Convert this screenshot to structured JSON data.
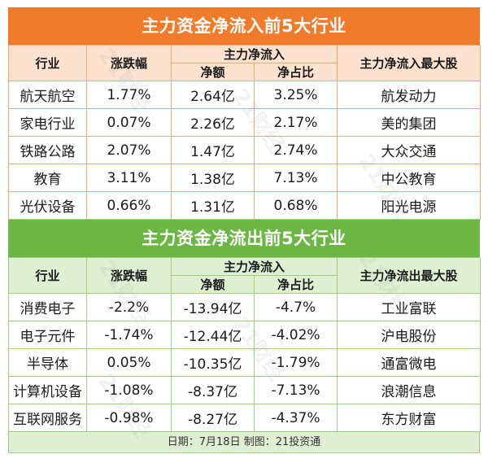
{
  "inflow": {
    "title": "主力资金净流入前5大行业",
    "headers": {
      "industry": "行业",
      "change": "涨跌幅",
      "main_flow": "主力净流入",
      "net_amount": "净额",
      "net_ratio": "净占比",
      "top_stock": "主力净流入最大股"
    },
    "rows": [
      {
        "industry": "航天航空",
        "change": "1.77%",
        "net_amount": "2.64亿",
        "net_ratio": "3.25%",
        "top_stock": "航发动力"
      },
      {
        "industry": "家电行业",
        "change": "0.07%",
        "net_amount": "2.26亿",
        "net_ratio": "2.17%",
        "top_stock": "美的集团"
      },
      {
        "industry": "铁路公路",
        "change": "2.07%",
        "net_amount": "1.47亿",
        "net_ratio": "2.74%",
        "top_stock": "大众交通"
      },
      {
        "industry": "教育",
        "change": "3.11%",
        "net_amount": "1.38亿",
        "net_ratio": "7.13%",
        "top_stock": "中公教育"
      },
      {
        "industry": "光伏设备",
        "change": "0.66%",
        "net_amount": "1.31亿",
        "net_ratio": "0.68%",
        "top_stock": "阳光电源"
      }
    ]
  },
  "outflow": {
    "title": "主力资金净流出前5大行业",
    "headers": {
      "industry": "行业",
      "change": "涨跌幅",
      "main_flow": "主力净流入",
      "net_amount": "净额",
      "net_ratio": "净占比",
      "top_stock": "主力净流出最大股"
    },
    "rows": [
      {
        "industry": "消费电子",
        "change": "-2.2%",
        "net_amount": "-13.94亿",
        "net_ratio": "-4.7%",
        "top_stock": "工业富联"
      },
      {
        "industry": "电子元件",
        "change": "-1.74%",
        "net_amount": "-12.44亿",
        "net_ratio": "-4.02%",
        "top_stock": "沪电股份"
      },
      {
        "industry": "半导体",
        "change": "0.05%",
        "net_amount": "-10.35亿",
        "net_ratio": "-1.79%",
        "top_stock": "通富微电"
      },
      {
        "industry": "计算机设备",
        "change": "-1.08%",
        "net_amount": "-8.37亿",
        "net_ratio": "-7.13%",
        "top_stock": "浪潮信息"
      },
      {
        "industry": "互联网服务",
        "change": "-0.98%",
        "net_amount": "-8.27亿",
        "net_ratio": "-4.37%",
        "top_stock": "东方财富"
      }
    ]
  },
  "footer": "日期：7月18日 制图：21投资通",
  "watermark": "21财经",
  "colors": {
    "inflow_accent": "#f07c2b",
    "outflow_accent": "#6cb744"
  }
}
